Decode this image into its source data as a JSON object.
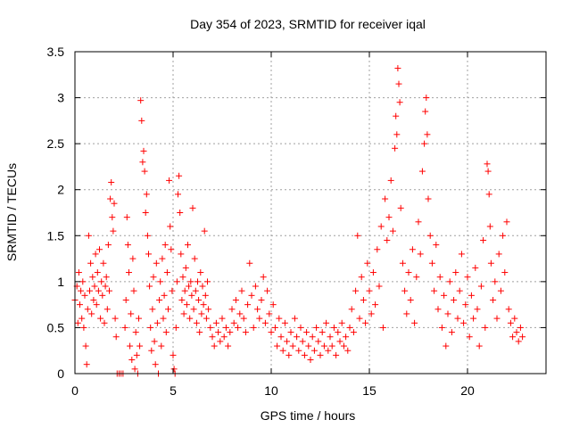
{
  "chart_data": {
    "type": "scatter",
    "title": "Day 354 of 2023, SRMTID for receiver iqal",
    "xlabel": "GPS time / hours",
    "ylabel": "SRMTID / TECUs",
    "xlim": [
      0,
      24
    ],
    "ylim": [
      0,
      3.5
    ],
    "xticks": [
      0,
      5,
      10,
      15,
      20
    ],
    "xtick_labels": [
      "0",
      "5",
      "10",
      "15",
      "20"
    ],
    "yticks": [
      0,
      0.5,
      1,
      1.5,
      2,
      2.5,
      3,
      3.5
    ],
    "ytick_labels": [
      "0",
      "0.5",
      "1",
      "1.5",
      "2",
      "2.5",
      "3",
      "3.5"
    ],
    "grid": true,
    "marker": "+",
    "color": "#ff0000",
    "series": [
      {
        "name": "SRMTID",
        "points": [
          [
            0.0,
            0.8
          ],
          [
            0.1,
            0.95
          ],
          [
            0.15,
            0.55
          ],
          [
            0.2,
            1.1
          ],
          [
            0.25,
            0.75
          ],
          [
            0.3,
            0.9
          ],
          [
            0.35,
            0.6
          ],
          [
            0.4,
            1.0
          ],
          [
            0.45,
            0.5
          ],
          [
            0.5,
            0.85
          ],
          [
            0.55,
            0.3
          ],
          [
            0.6,
            0.1
          ],
          [
            0.65,
            0.7
          ],
          [
            0.7,
            1.5
          ],
          [
            0.75,
            0.9
          ],
          [
            0.8,
            1.2
          ],
          [
            0.85,
            0.65
          ],
          [
            0.9,
            1.05
          ],
          [
            0.95,
            0.8
          ],
          [
            1.0,
            0.95
          ],
          [
            1.05,
            1.3
          ],
          [
            1.1,
            0.75
          ],
          [
            1.15,
            1.1
          ],
          [
            1.2,
            0.9
          ],
          [
            1.25,
            1.35
          ],
          [
            1.3,
            0.6
          ],
          [
            1.35,
            1.0
          ],
          [
            1.4,
            0.85
          ],
          [
            1.45,
            1.2
          ],
          [
            1.5,
            0.55
          ],
          [
            1.55,
            0.95
          ],
          [
            1.6,
            1.05
          ],
          [
            1.65,
            0.7
          ],
          [
            1.7,
            1.4
          ],
          [
            1.75,
            0.9
          ],
          [
            1.8,
            1.9
          ],
          [
            1.85,
            2.08
          ],
          [
            1.9,
            1.7
          ],
          [
            1.95,
            1.55
          ],
          [
            2.0,
            1.85
          ],
          [
            2.05,
            0.6
          ],
          [
            2.1,
            0.4
          ],
          [
            2.15,
            0.0
          ],
          [
            2.25,
            0.0
          ],
          [
            2.35,
            0.0
          ],
          [
            2.45,
            0.0
          ],
          [
            2.55,
            0.5
          ],
          [
            2.6,
            0.8
          ],
          [
            2.65,
            1.7
          ],
          [
            2.7,
            1.4
          ],
          [
            2.75,
            1.1
          ],
          [
            2.8,
            0.3
          ],
          [
            2.85,
            0.65
          ],
          [
            2.9,
            0.15
          ],
          [
            2.95,
            1.25
          ],
          [
            3.0,
            0.9
          ],
          [
            3.05,
            0.05
          ],
          [
            3.1,
            0.45
          ],
          [
            3.15,
            0.2
          ],
          [
            3.2,
            0.0
          ],
          [
            3.25,
            0.6
          ],
          [
            3.3,
            0.3
          ],
          [
            3.35,
            2.97
          ],
          [
            3.4,
            2.75
          ],
          [
            3.45,
            2.3
          ],
          [
            3.5,
            2.42
          ],
          [
            3.55,
            2.2
          ],
          [
            3.6,
            1.75
          ],
          [
            3.65,
            1.95
          ],
          [
            3.7,
            1.5
          ],
          [
            3.75,
            1.3
          ],
          [
            3.8,
            0.95
          ],
          [
            3.85,
            0.5
          ],
          [
            3.9,
            0.25
          ],
          [
            3.95,
            0.7
          ],
          [
            4.0,
            1.05
          ],
          [
            4.05,
            0.35
          ],
          [
            4.1,
            0.1
          ],
          [
            4.15,
            1.2
          ],
          [
            4.2,
            0.55
          ],
          [
            4.25,
            0.0
          ],
          [
            4.3,
            0.8
          ],
          [
            4.35,
            1.0
          ],
          [
            4.4,
            0.3
          ],
          [
            4.45,
            1.25
          ],
          [
            4.5,
            0.6
          ],
          [
            4.55,
            0.85
          ],
          [
            4.6,
            1.4
          ],
          [
            4.65,
            0.45
          ],
          [
            4.7,
            1.1
          ],
          [
            4.75,
            0.7
          ],
          [
            4.8,
            2.1
          ],
          [
            4.85,
            1.6
          ],
          [
            4.9,
            1.35
          ],
          [
            4.95,
            0.9
          ],
          [
            5.0,
            0.2
          ],
          [
            5.05,
            0.05
          ],
          [
            5.1,
            0.0
          ],
          [
            5.15,
            0.5
          ],
          [
            5.2,
            1.0
          ],
          [
            5.25,
            1.95
          ],
          [
            5.3,
            2.15
          ],
          [
            5.35,
            1.75
          ],
          [
            5.4,
            1.3
          ],
          [
            5.45,
            0.8
          ],
          [
            5.5,
            1.05
          ],
          [
            5.55,
            0.65
          ],
          [
            5.6,
            0.9
          ],
          [
            5.65,
            1.15
          ],
          [
            5.7,
            0.75
          ],
          [
            5.75,
            1.4
          ],
          [
            5.8,
            0.95
          ],
          [
            5.85,
            0.6
          ],
          [
            5.9,
            1.0
          ],
          [
            5.95,
            0.85
          ],
          [
            6.0,
            1.8
          ],
          [
            6.05,
            0.7
          ],
          [
            6.1,
            1.25
          ],
          [
            6.15,
            0.9
          ],
          [
            6.2,
            0.55
          ],
          [
            6.25,
            1.0
          ],
          [
            6.3,
            0.8
          ],
          [
            6.35,
            0.45
          ],
          [
            6.4,
            1.1
          ],
          [
            6.45,
            0.65
          ],
          [
            6.5,
            0.95
          ],
          [
            6.55,
            0.75
          ],
          [
            6.6,
            1.55
          ],
          [
            6.65,
            0.85
          ],
          [
            6.7,
            0.6
          ],
          [
            6.75,
            1.0
          ],
          [
            6.8,
            0.7
          ],
          [
            6.9,
            0.5
          ],
          [
            7.0,
            0.4
          ],
          [
            7.1,
            0.3
          ],
          [
            7.2,
            0.55
          ],
          [
            7.3,
            0.45
          ],
          [
            7.4,
            0.35
          ],
          [
            7.5,
            0.6
          ],
          [
            7.6,
            0.4
          ],
          [
            7.7,
            0.5
          ],
          [
            7.8,
            0.3
          ],
          [
            7.9,
            0.45
          ],
          [
            8.0,
            0.7
          ],
          [
            8.1,
            0.55
          ],
          [
            8.2,
            0.8
          ],
          [
            8.3,
            0.5
          ],
          [
            8.4,
            0.65
          ],
          [
            8.5,
            0.9
          ],
          [
            8.6,
            0.6
          ],
          [
            8.7,
            0.45
          ],
          [
            8.8,
            0.75
          ],
          [
            8.9,
            1.2
          ],
          [
            9.0,
            0.85
          ],
          [
            9.1,
            0.5
          ],
          [
            9.2,
            0.95
          ],
          [
            9.3,
            0.7
          ],
          [
            9.4,
            0.6
          ],
          [
            9.5,
            0.8
          ],
          [
            9.6,
            1.05
          ],
          [
            9.7,
            0.55
          ],
          [
            9.8,
            0.9
          ],
          [
            9.9,
            0.65
          ],
          [
            10.0,
            0.45
          ],
          [
            10.1,
            0.75
          ],
          [
            10.2,
            0.5
          ],
          [
            10.3,
            0.3
          ],
          [
            10.4,
            0.6
          ],
          [
            10.5,
            0.4
          ],
          [
            10.6,
            0.25
          ],
          [
            10.7,
            0.55
          ],
          [
            10.8,
            0.35
          ],
          [
            10.9,
            0.2
          ],
          [
            11.0,
            0.45
          ],
          [
            11.1,
            0.3
          ],
          [
            11.2,
            0.6
          ],
          [
            11.3,
            0.4
          ],
          [
            11.4,
            0.25
          ],
          [
            11.5,
            0.5
          ],
          [
            11.6,
            0.35
          ],
          [
            11.7,
            0.2
          ],
          [
            11.8,
            0.45
          ],
          [
            11.9,
            0.3
          ],
          [
            12.0,
            0.15
          ],
          [
            12.1,
            0.4
          ],
          [
            12.2,
            0.25
          ],
          [
            12.3,
            0.5
          ],
          [
            12.4,
            0.35
          ],
          [
            12.5,
            0.2
          ],
          [
            12.6,
            0.45
          ],
          [
            12.7,
            0.3
          ],
          [
            12.8,
            0.55
          ],
          [
            12.9,
            0.25
          ],
          [
            13.0,
            0.4
          ],
          [
            13.1,
            0.3
          ],
          [
            13.2,
            0.5
          ],
          [
            13.3,
            0.2
          ],
          [
            13.4,
            0.45
          ],
          [
            13.5,
            0.35
          ],
          [
            13.6,
            0.55
          ],
          [
            13.7,
            0.3
          ],
          [
            13.8,
            0.4
          ],
          [
            13.9,
            0.25
          ],
          [
            14.0,
            0.5
          ],
          [
            14.1,
            0.7
          ],
          [
            14.2,
            0.45
          ],
          [
            14.3,
            0.9
          ],
          [
            14.4,
            1.5
          ],
          [
            14.5,
            0.6
          ],
          [
            14.6,
            1.05
          ],
          [
            14.7,
            0.8
          ],
          [
            14.8,
            0.55
          ],
          [
            14.9,
            1.2
          ],
          [
            15.0,
            0.9
          ],
          [
            15.1,
            0.65
          ],
          [
            15.2,
            1.1
          ],
          [
            15.3,
            0.75
          ],
          [
            15.4,
            1.35
          ],
          [
            15.5,
            0.95
          ],
          [
            15.6,
            1.6
          ],
          [
            15.7,
            0.5
          ],
          [
            15.8,
            1.9
          ],
          [
            15.9,
            1.45
          ],
          [
            16.0,
            1.7
          ],
          [
            16.1,
            2.1
          ],
          [
            16.2,
            1.55
          ],
          [
            16.3,
            2.45
          ],
          [
            16.35,
            2.8
          ],
          [
            16.4,
            2.6
          ],
          [
            16.45,
            3.32
          ],
          [
            16.5,
            3.15
          ],
          [
            16.55,
            2.95
          ],
          [
            16.6,
            1.8
          ],
          [
            16.7,
            1.2
          ],
          [
            16.8,
            0.9
          ],
          [
            16.9,
            0.65
          ],
          [
            17.0,
            1.1
          ],
          [
            17.1,
            0.8
          ],
          [
            17.2,
            1.35
          ],
          [
            17.3,
            0.55
          ],
          [
            17.4,
            1.05
          ],
          [
            17.5,
            1.65
          ],
          [
            17.6,
            1.3
          ],
          [
            17.7,
            2.2
          ],
          [
            17.8,
            2.5
          ],
          [
            17.85,
            2.85
          ],
          [
            17.9,
            3.0
          ],
          [
            17.95,
            2.6
          ],
          [
            18.0,
            1.9
          ],
          [
            18.1,
            1.5
          ],
          [
            18.2,
            1.2
          ],
          [
            18.3,
            0.9
          ],
          [
            18.4,
            1.4
          ],
          [
            18.5,
            0.7
          ],
          [
            18.6,
            1.05
          ],
          [
            18.7,
            0.5
          ],
          [
            18.8,
            0.85
          ],
          [
            18.9,
            0.3
          ],
          [
            19.0,
            0.65
          ],
          [
            19.1,
            1.0
          ],
          [
            19.2,
            0.45
          ],
          [
            19.3,
            0.8
          ],
          [
            19.4,
            1.1
          ],
          [
            19.5,
            0.6
          ],
          [
            19.6,
            0.9
          ],
          [
            19.7,
            1.3
          ],
          [
            19.8,
            0.55
          ],
          [
            19.9,
            0.75
          ],
          [
            20.0,
            1.05
          ],
          [
            20.1,
            0.4
          ],
          [
            20.2,
            0.85
          ],
          [
            20.3,
            0.6
          ],
          [
            20.4,
            1.15
          ],
          [
            20.5,
            0.7
          ],
          [
            20.6,
            0.3
          ],
          [
            20.7,
            0.95
          ],
          [
            20.8,
            1.45
          ],
          [
            20.9,
            0.5
          ],
          [
            21.0,
            2.28
          ],
          [
            21.05,
            2.2
          ],
          [
            21.1,
            1.95
          ],
          [
            21.15,
            1.6
          ],
          [
            21.2,
            1.2
          ],
          [
            21.3,
            0.8
          ],
          [
            21.4,
            1.0
          ],
          [
            21.5,
            0.6
          ],
          [
            21.6,
            1.3
          ],
          [
            21.7,
            0.9
          ],
          [
            21.8,
            1.5
          ],
          [
            21.9,
            1.1
          ],
          [
            22.0,
            1.65
          ],
          [
            22.1,
            0.7
          ],
          [
            22.2,
            0.55
          ],
          [
            22.3,
            0.4
          ],
          [
            22.4,
            0.6
          ],
          [
            22.5,
            0.45
          ],
          [
            22.6,
            0.35
          ],
          [
            22.7,
            0.5
          ],
          [
            22.8,
            0.4
          ]
        ]
      }
    ]
  }
}
